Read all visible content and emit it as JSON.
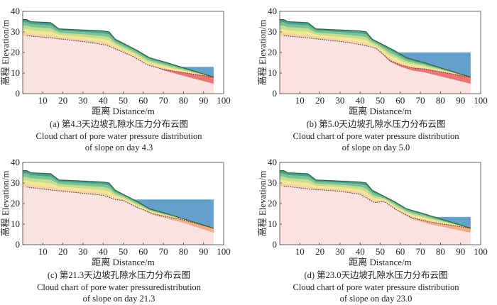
{
  "chart_data": [
    {
      "type": "contour",
      "panel": "a",
      "caption_cn": "(a) 第4.3天边坡孔隙水压力分布云图",
      "caption_en_1": "Cloud chart of pore water pressure distribution",
      "caption_en_2": "of slope on day 4.3",
      "xlabel": "距离 Distance/m",
      "ylabel": "高程 Elevation/m",
      "xlim": [
        0,
        100
      ],
      "ylim": [
        0,
        40
      ],
      "xticks": [
        "10",
        "20",
        "30",
        "40",
        "50",
        "60",
        "70",
        "80",
        "90",
        "100"
      ],
      "yticks": [
        "0",
        "10",
        "20",
        "30",
        "40"
      ],
      "water_level": 13,
      "water_x_start": 74,
      "phreatic_line": [
        [
          2,
          28.2
        ],
        [
          15,
          27
        ],
        [
          33,
          25
        ],
        [
          42,
          23.5
        ],
        [
          55,
          18
        ],
        [
          62,
          14
        ],
        [
          70,
          11.8
        ],
        [
          78,
          10.5
        ],
        [
          95,
          8
        ]
      ],
      "saturated_zone": "toe"
    },
    {
      "type": "contour",
      "panel": "b",
      "caption_cn": "(b) 第5.0天边坡孔隙水压力分布云图",
      "caption_en_1": "Cloud chart of pore water pressure distribution",
      "caption_en_2": "of slope on day 5.0",
      "xlabel": "距离 Distance/m",
      "ylabel": "高程 Elevation/m",
      "xlim": [
        0,
        100
      ],
      "ylim": [
        0,
        40
      ],
      "xticks": [
        "10",
        "20",
        "30",
        "40",
        "50",
        "60",
        "70",
        "80",
        "90",
        "100"
      ],
      "yticks": [
        "0",
        "10",
        "20",
        "30",
        "40"
      ],
      "water_level": 20,
      "water_x_start": 55,
      "phreatic_line": [
        [
          2,
          28.2
        ],
        [
          15,
          27
        ],
        [
          33,
          25
        ],
        [
          42,
          23.5
        ],
        [
          48,
          22
        ],
        [
          55,
          16
        ],
        [
          60,
          14
        ],
        [
          66,
          12.5
        ],
        [
          72,
          12
        ],
        [
          95,
          8
        ]
      ],
      "saturated_zone": "toe"
    },
    {
      "type": "contour",
      "panel": "c",
      "caption_cn": "(c) 第21.3天边坡孔隙水压力分布云图",
      "caption_en_1": "Cloud chart of pore water pressuredistribution",
      "caption_en_2": "of slope on day 21.3",
      "xlabel": "距离 Distance/m",
      "ylabel": "高程 Elevation/m",
      "xlim": [
        0,
        100
      ],
      "ylim": [
        0,
        40
      ],
      "xticks": [
        "10",
        "20",
        "30",
        "40",
        "50",
        "60",
        "70",
        "80",
        "90",
        "100"
      ],
      "yticks": [
        "0",
        "10",
        "20",
        "30",
        "40"
      ],
      "water_level": 22,
      "water_x_start": 48,
      "phreatic_line": [
        [
          2,
          28
        ],
        [
          15,
          26.5
        ],
        [
          30,
          25
        ],
        [
          40,
          24
        ],
        [
          46,
          22
        ],
        [
          50,
          21.5
        ],
        [
          55,
          19
        ],
        [
          65,
          15
        ],
        [
          80,
          12
        ],
        [
          95,
          8
        ]
      ],
      "saturated_zone": "lower"
    },
    {
      "type": "contour",
      "panel": "d",
      "caption_cn": "(d) 第23.0天边坡孔隙水压力分布云图",
      "caption_en_1": "Cloud chart of pore water pressure distribution",
      "caption_en_2": "of slope on day 23.0",
      "xlabel": "距离 Distance/m",
      "ylabel": "高程 Elevation/m",
      "xlim": [
        0,
        100
      ],
      "ylim": [
        0,
        40
      ],
      "xticks": [
        "10",
        "20",
        "30",
        "40",
        "50",
        "60",
        "70",
        "80",
        "90",
        "100"
      ],
      "yticks": [
        "0",
        "10",
        "20",
        "30",
        "40"
      ],
      "water_level": 13.5,
      "water_x_start": 72,
      "phreatic_line": [
        [
          2,
          28.5
        ],
        [
          15,
          27
        ],
        [
          30,
          26
        ],
        [
          40,
          24.5
        ],
        [
          47,
          20.5
        ],
        [
          52,
          21
        ],
        [
          58,
          17
        ],
        [
          66,
          13
        ],
        [
          75,
          11
        ],
        [
          95,
          8
        ]
      ],
      "saturated_zone": "lower"
    }
  ],
  "slope_profile": [
    [
      0,
      36
    ],
    [
      2,
      36
    ],
    [
      4,
      35
    ],
    [
      14,
      34.5
    ],
    [
      18,
      31.5
    ],
    [
      40,
      30.5
    ],
    [
      43,
      30
    ],
    [
      46,
      26.5
    ],
    [
      57,
      21
    ],
    [
      63,
      17.5
    ],
    [
      72,
      15
    ],
    [
      95,
      8
    ]
  ],
  "colors": {
    "base_fill": "#f9e2e0",
    "water": "#5b9bc8",
    "surface_line": "#2f5c2a",
    "phreatic_line": "#333333",
    "saturated": "#e8625e",
    "band_1": "#3d9a8a",
    "band_2": "#6cc08e",
    "band_3": "#b8dd8a",
    "band_4": "#f1e78c",
    "band_5": "#f7cf9a"
  }
}
